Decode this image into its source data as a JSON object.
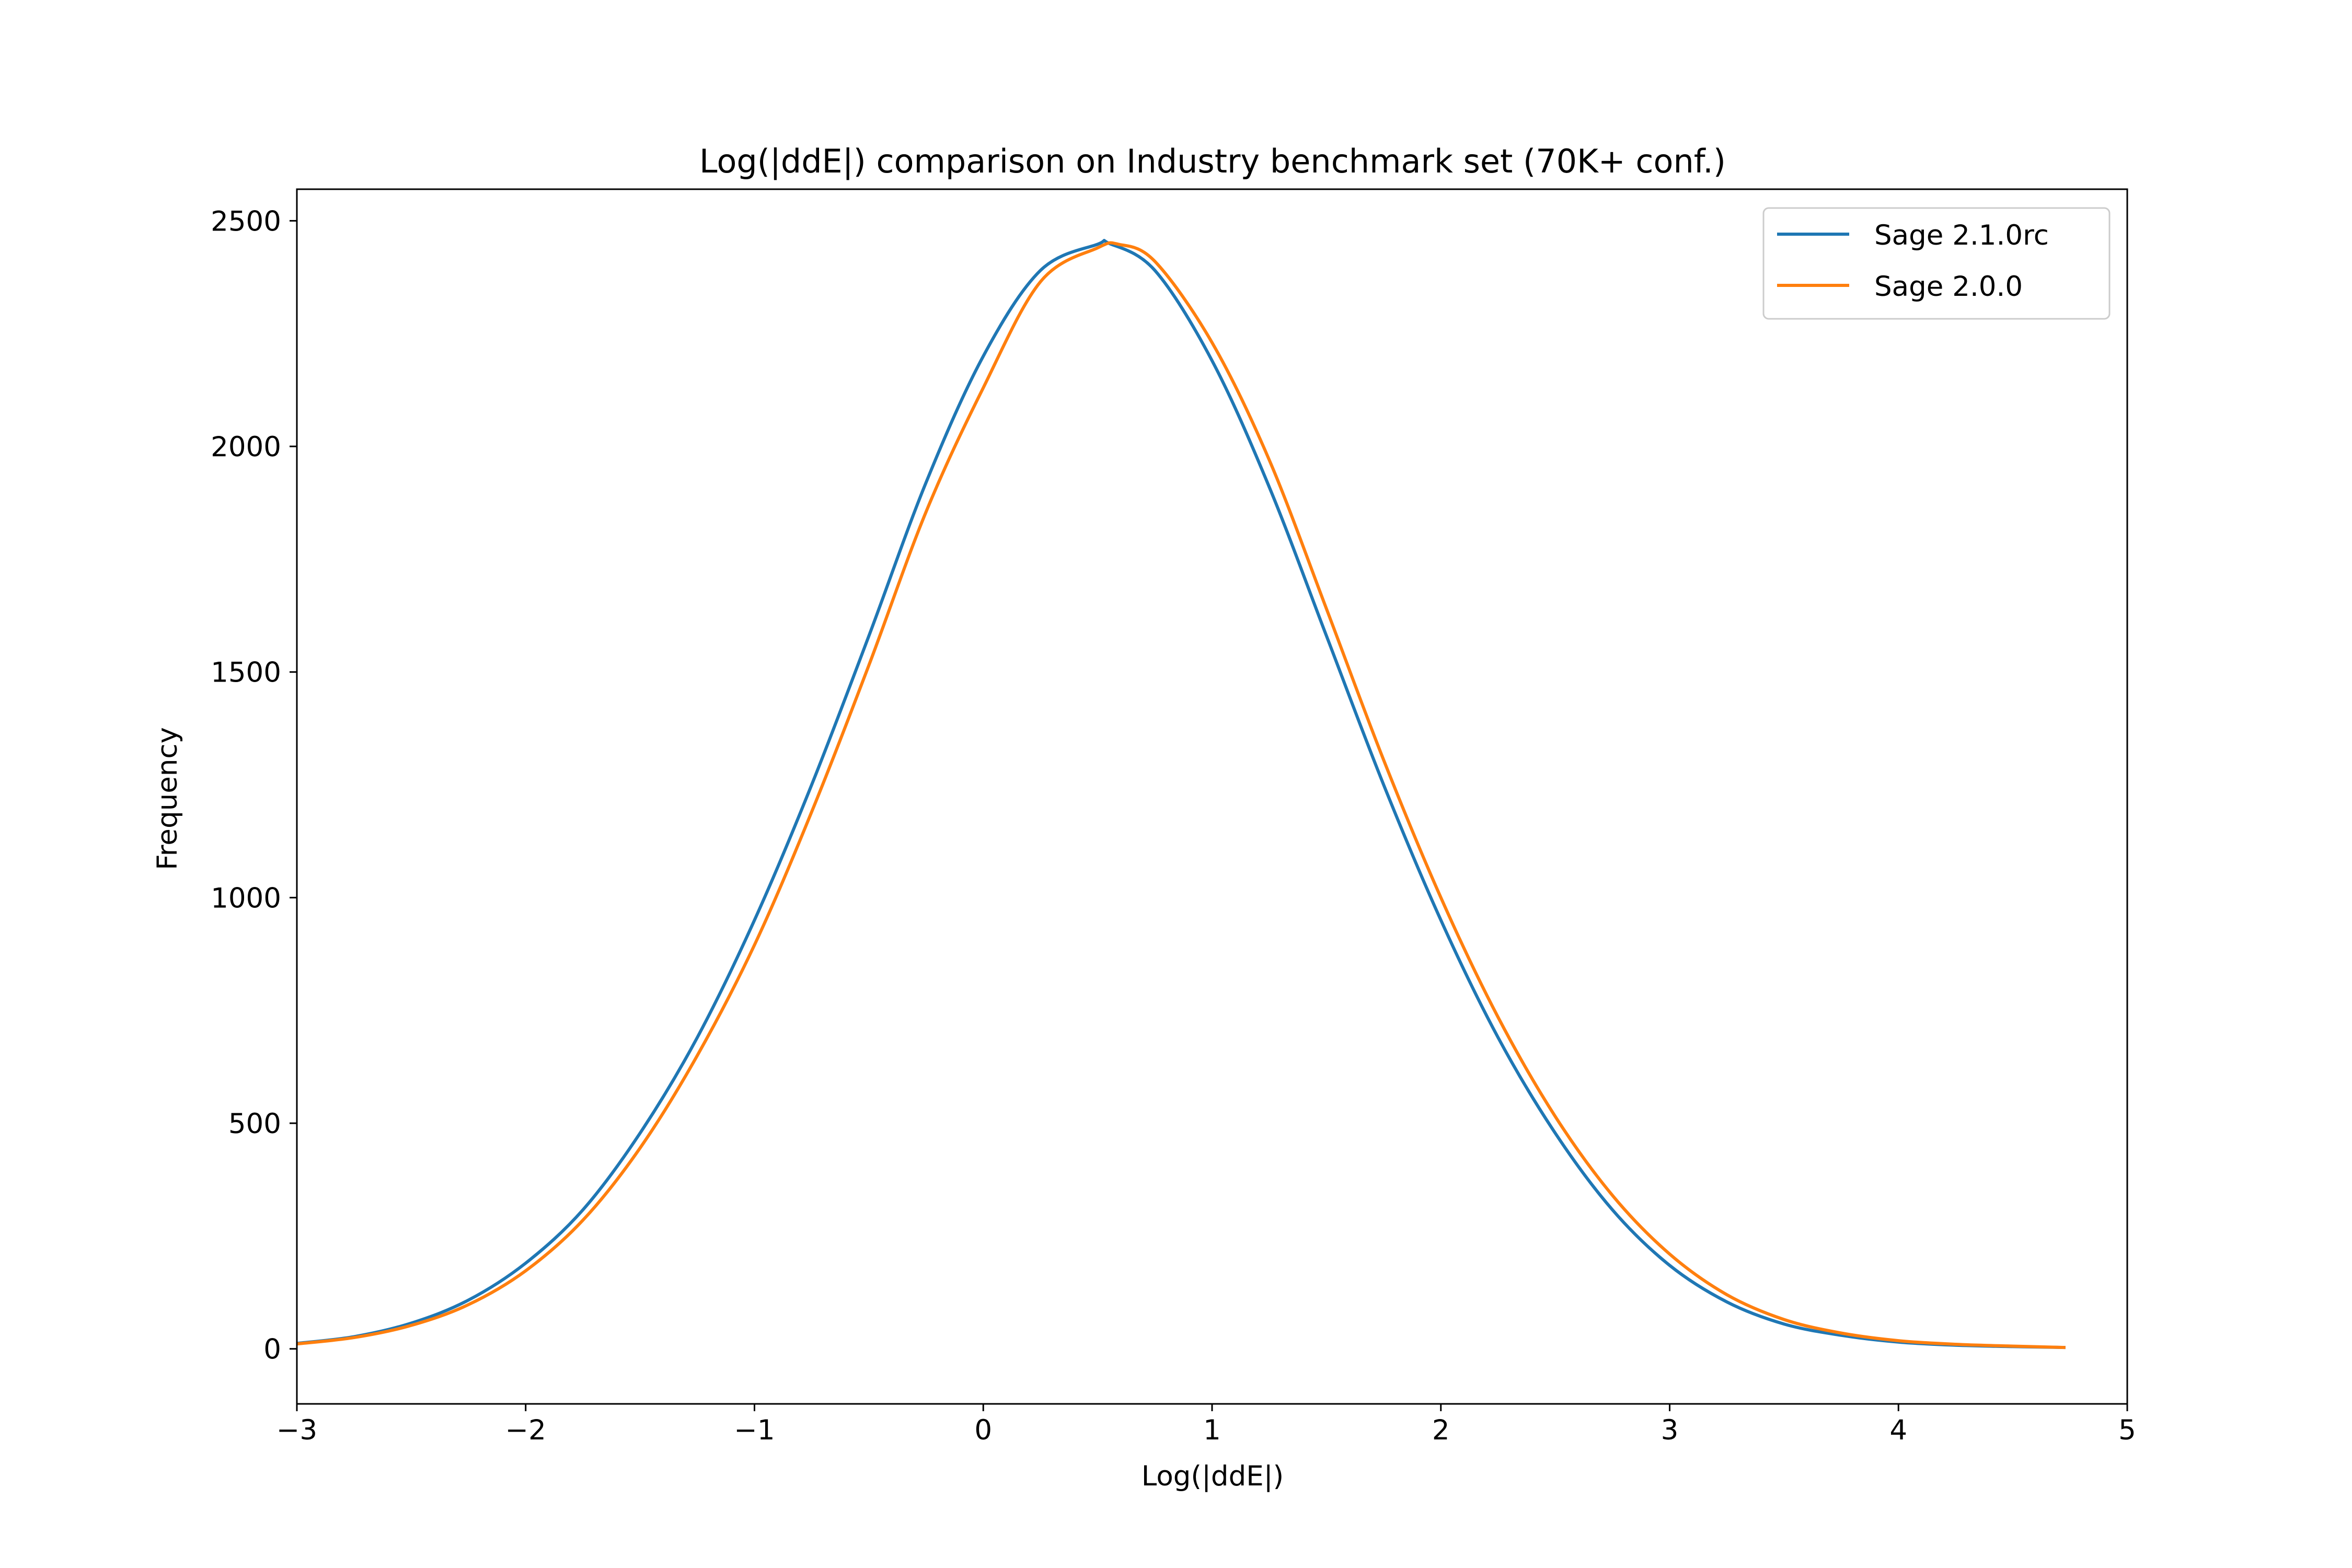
{
  "colors": {
    "series_1": "#1f77b4",
    "series_2": "#ff7f0e",
    "axes": "#000000",
    "legend_border": "#cccccc",
    "background": "#ffffff"
  },
  "chart_data": {
    "type": "line",
    "title": "Log(|ddE|) comparison on Industry benchmark set (70K+ conf.)",
    "xlabel": "Log(|ddE|)",
    "ylabel": "Frequency",
    "xlim": [
      -3,
      5
    ],
    "ylim": [
      -122,
      2570
    ],
    "xticks": [
      -3,
      -2,
      -1,
      0,
      1,
      2,
      3,
      4,
      5
    ],
    "xtick_labels": [
      "−3",
      "−2",
      "−1",
      "0",
      "1",
      "2",
      "3",
      "4",
      "5"
    ],
    "yticks": [
      0,
      500,
      1000,
      1500,
      2000,
      2500
    ],
    "ytick_labels": [
      "0",
      "500",
      "1000",
      "1500",
      "2000",
      "2500"
    ],
    "grid": false,
    "legend_position": "top-right",
    "series": [
      {
        "name": "Sage 2.1.0rc",
        "x": [
          -3.0,
          -2.75,
          -2.5,
          -2.25,
          -2.0,
          -1.75,
          -1.5,
          -1.25,
          -1.0,
          -0.75,
          -0.5,
          -0.25,
          0.0,
          0.25,
          0.5,
          0.55,
          0.75,
          1.0,
          1.25,
          1.5,
          1.75,
          2.0,
          2.25,
          2.5,
          2.75,
          3.0,
          3.25,
          3.5,
          3.75,
          4.0,
          4.25,
          4.5,
          4.73
        ],
        "y": [
          12,
          27,
          57,
          108,
          190,
          308,
          478,
          690,
          950,
          1250,
          1580,
          1920,
          2200,
          2390,
          2448,
          2450,
          2390,
          2190,
          1910,
          1580,
          1250,
          950,
          690,
          478,
          308,
          185,
          104,
          55,
          30,
          15,
          8,
          5,
          3
        ]
      },
      {
        "name": "Sage 2.0.0",
        "x": [
          -3.0,
          -2.75,
          -2.5,
          -2.25,
          -2.0,
          -1.75,
          -1.5,
          -1.25,
          -1.0,
          -0.75,
          -0.5,
          -0.25,
          0.0,
          0.25,
          0.5,
          0.59,
          0.75,
          1.0,
          1.25,
          1.5,
          1.75,
          2.0,
          2.25,
          2.5,
          2.75,
          3.0,
          3.25,
          3.5,
          3.75,
          4.0,
          4.25,
          4.5,
          4.73
        ],
        "y": [
          11,
          25,
          52,
          98,
          173,
          285,
          445,
          650,
          895,
          1190,
          1515,
          1855,
          2130,
          2365,
          2440,
          2448,
          2410,
          2230,
          1970,
          1640,
          1305,
          1000,
          735,
          515,
          340,
          210,
          120,
          65,
          35,
          18,
          10,
          6,
          3
        ]
      }
    ]
  }
}
